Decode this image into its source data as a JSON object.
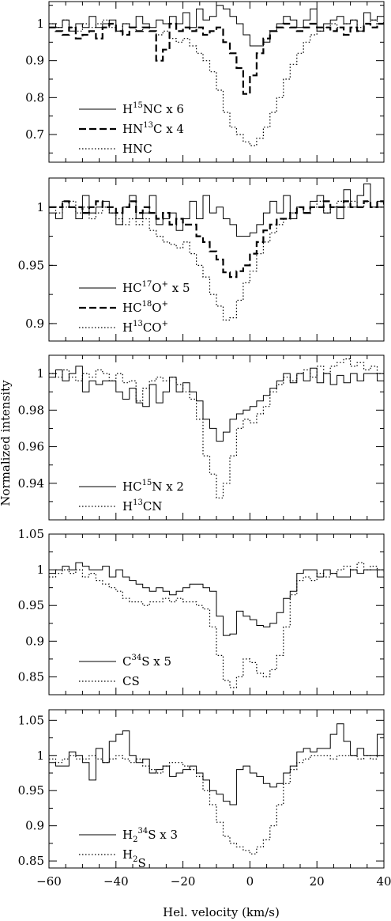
{
  "chart_data": [
    {
      "type": "line",
      "xlim": [
        -60,
        40
      ],
      "ylim": [
        0.625,
        1.06
      ],
      "yticks_labeled": [
        0.7,
        0.8,
        0.9,
        1
      ],
      "yticks_minor": [
        0.65,
        0.75,
        0.85,
        0.95,
        1.05
      ],
      "step": 2,
      "series": [
        {
          "name": "H15NC x 6",
          "label": {
            "base": "H",
            "sup1": "15",
            "mid": "NC x 6"
          },
          "style": "solid",
          "y": [
            1.0,
            0.99,
            1.01,
            0.98,
            1.0,
            0.99,
            1.02,
            0.99,
            1.0,
            1.01,
            0.98,
            1.0,
            0.99,
            1.02,
            1.0,
            0.99,
            1.01,
            1.0,
            1.02,
            1.0,
            1.03,
            0.99,
            1.04,
            1.01,
            1.02,
            1.05,
            1.04,
            1.02,
            1.0,
            0.97,
            0.94,
            0.94,
            0.95,
            0.98,
            1.0,
            1.02,
            1.01,
            0.99,
            1.01,
            1.04,
            0.98,
            1.0,
            1.01,
            1.02,
            1.0,
            1.01,
            0.98,
            1.03,
            1.01,
            1.02,
            1.04
          ]
        },
        {
          "name": "HN13C x 4",
          "label": {
            "base": "HN",
            "sup1": "13",
            "mid": "C x 4"
          },
          "style": "dashed",
          "y": [
            0.99,
            0.98,
            0.97,
            0.99,
            0.96,
            0.97,
            0.98,
            0.96,
            0.99,
            1.0,
            0.98,
            0.97,
            0.99,
            0.98,
            0.99,
            0.98,
            0.9,
            0.93,
            1.0,
            0.98,
            0.99,
            0.98,
            0.99,
            0.97,
            0.98,
            0.99,
            0.95,
            0.92,
            0.88,
            0.81,
            0.86,
            0.92,
            0.96,
            0.98,
            0.99,
            1.0,
            0.99,
            0.98,
            0.99,
            1.0,
            0.99,
            0.99,
            0.98,
            0.99,
            0.97,
            0.99,
            0.98,
            1.0,
            0.99,
            1.0,
            1.01
          ]
        },
        {
          "name": "HNC",
          "label": {
            "base": "HNC"
          },
          "style": "dotted",
          "y": [
            1.0,
            0.99,
            1.01,
            0.99,
            0.98,
            1.0,
            0.99,
            1.0,
            1.01,
            0.99,
            0.98,
            1.0,
            0.99,
            0.98,
            0.99,
            0.98,
            0.97,
            0.98,
            0.96,
            0.95,
            0.96,
            0.94,
            0.92,
            0.9,
            0.87,
            0.82,
            0.76,
            0.72,
            0.7,
            0.68,
            0.67,
            0.69,
            0.72,
            0.76,
            0.8,
            0.85,
            0.89,
            0.92,
            0.95,
            0.97,
            0.98,
            0.99,
            1.0,
            0.99,
            1.0,
            1.01,
            0.99,
            1.0,
            1.01,
            1.0,
            1.01
          ]
        }
      ]
    },
    {
      "type": "line",
      "xlim": [
        -60,
        40
      ],
      "ylim": [
        0.885,
        1.025
      ],
      "yticks_labeled": [
        0.9,
        0.95,
        1
      ],
      "yticks_minor": [
        0.9,
        0.925,
        0.95,
        0.975,
        1.0,
        1.025
      ],
      "step": 2,
      "series": [
        {
          "name": "HC17O+ x 5",
          "label": {
            "base": "HC",
            "sup1": "17",
            "mid": "O",
            "sup2": "+",
            "tail": " x 5"
          },
          "style": "solid",
          "y": [
            0.995,
            0.99,
            1.005,
            1.0,
            0.99,
            1.01,
            0.995,
            1.0,
            1.005,
            0.995,
            0.985,
            1.0,
            1.01,
            0.99,
            0.995,
            1.01,
            0.985,
            0.99,
            0.995,
            0.98,
            0.99,
            1.005,
            0.99,
            1.01,
            0.995,
            1.0,
            0.99,
            0.985,
            0.975,
            0.975,
            0.978,
            0.985,
            0.995,
            1.005,
            0.995,
            1.01,
            0.99,
            1.0,
            0.995,
            1.005,
            1.01,
            0.995,
            1.0,
            0.99,
            1.015,
            1.0,
            1.01,
            1.02,
            1.0,
            1.005,
            1.0
          ]
        },
        {
          "name": "HC18O+",
          "label": {
            "base": "HC",
            "sup1": "18",
            "mid": "O",
            "sup2": "+"
          },
          "style": "dashed",
          "y": [
            1.0,
            1.0,
            1.005,
            1.0,
            1.0,
            0.995,
            1.0,
            1.005,
            1.0,
            1.0,
            0.995,
            1.0,
            1.005,
            0.995,
            1.0,
            0.995,
            0.99,
            0.995,
            0.985,
            0.99,
            0.985,
            0.985,
            0.975,
            0.97,
            0.962,
            0.955,
            0.944,
            0.94,
            0.945,
            0.95,
            0.96,
            0.97,
            0.98,
            0.985,
            0.99,
            0.99,
            0.995,
            1.0,
            0.995,
            1.0,
            1.0,
            1.005,
            1.0,
            1.0,
            1.005,
            1.0,
            1.0,
            1.005,
            1.0,
            1.005,
            1.0
          ]
        },
        {
          "name": "H13CO+",
          "label": {
            "base": "H",
            "sup1": "13",
            "mid": "CO",
            "sup2": "+"
          },
          "style": "dotted",
          "y": [
            1.0,
            0.995,
            1.0,
            1.005,
            0.995,
            1.0,
            0.99,
            0.995,
            1.0,
            0.995,
            0.99,
            0.985,
            0.99,
            0.985,
            0.99,
            0.98,
            0.975,
            0.97,
            0.968,
            0.965,
            0.97,
            0.96,
            0.95,
            0.94,
            0.925,
            0.915,
            0.903,
            0.905,
            0.92,
            0.935,
            0.945,
            0.96,
            0.97,
            0.978,
            0.985,
            0.99,
            0.995,
            1.0,
            0.995,
            1.0,
            1.005,
            0.995,
            1.0,
            1.005,
            1.0,
            1.005,
            1.0,
            1.005,
            1.0,
            1.0,
            1.0
          ]
        }
      ]
    },
    {
      "type": "line",
      "xlim": [
        -60,
        40
      ],
      "ylim": [
        0.92,
        1.01
      ],
      "yticks_labeled": [
        0.94,
        0.96,
        0.98,
        1
      ],
      "yticks_minor": [
        0.93,
        0.95,
        0.97,
        0.99
      ],
      "step": 2,
      "series": [
        {
          "name": "HC15N x 2",
          "label": {
            "base": "HC",
            "sup1": "15",
            "mid": "N x 2"
          },
          "style": "solid",
          "y": [
            0.998,
            1.002,
            0.996,
            1.0,
            1.004,
            0.99,
            0.996,
            0.994,
            0.996,
            0.996,
            0.99,
            0.986,
            0.992,
            0.984,
            0.982,
            0.994,
            0.984,
            0.99,
            0.998,
            0.99,
            0.995,
            0.99,
            0.985,
            0.975,
            0.97,
            0.963,
            0.968,
            0.975,
            0.978,
            0.98,
            0.982,
            0.985,
            0.988,
            0.992,
            0.996,
            1.0,
            0.995,
            1.0,
            0.996,
            1.003,
            0.995,
            1.0,
            0.994,
            0.999,
            0.995,
            1.0,
            0.996,
            1.0,
            1.0,
            0.996,
            1.0
          ]
        },
        {
          "name": "H13CN",
          "label": {
            "base": "H",
            "sup1": "13",
            "mid": "CN"
          },
          "style": "dotted",
          "y": [
            1.0,
            0.998,
            1.002,
            0.998,
            0.996,
            1.0,
            0.998,
            1.002,
            1.0,
            0.996,
            1.0,
            0.995,
            0.996,
            0.985,
            0.992,
            0.996,
            0.998,
            0.996,
            0.998,
            0.994,
            0.99,
            0.986,
            0.975,
            0.955,
            0.945,
            0.932,
            0.94,
            0.955,
            0.97,
            0.975,
            0.973,
            0.978,
            0.982,
            0.99,
            0.994,
            0.998,
            0.996,
            1.0,
            1.002,
            0.998,
            1.004,
            1.0,
            1.004,
            1.006,
            1.008,
            1.004,
            1.006,
            1.002,
            1.004,
            1.0,
            1.002
          ]
        }
      ]
    },
    {
      "type": "line",
      "xlim": [
        -60,
        40
      ],
      "ylim": [
        0.825,
        1.05
      ],
      "yticks_labeled": [
        0.85,
        0.9,
        0.95,
        1,
        1.05
      ],
      "yticks_minor": [
        0.875,
        0.925,
        0.975,
        1.025
      ],
      "step": 2,
      "series": [
        {
          "name": "C34S x 5",
          "label": {
            "base": "C",
            "sup1": "34",
            "mid": "S x 5"
          },
          "style": "solid",
          "y": [
            0.995,
            1.0,
            1.005,
            1.0,
            1.01,
            1.005,
            1.0,
            1.0,
            1.005,
            0.99,
            1.0,
            0.99,
            0.985,
            0.98,
            0.975,
            0.97,
            0.975,
            0.97,
            0.965,
            0.97,
            0.975,
            0.98,
            0.98,
            0.975,
            0.97,
            0.935,
            0.908,
            0.91,
            0.942,
            0.935,
            0.93,
            0.922,
            0.92,
            0.925,
            0.94,
            0.96,
            0.97,
            0.995,
            1.0,
            1.0,
            0.99,
            1.0,
            0.995,
            0.99,
            0.99,
            1.0,
            0.995,
            1.0,
            1.0,
            0.99,
            0.995
          ]
        },
        {
          "name": "CS",
          "label": {
            "base": "CS"
          },
          "style": "dotted",
          "y": [
            0.99,
            0.995,
            1.0,
            0.995,
            1.0,
            0.99,
            0.995,
            0.985,
            0.98,
            0.975,
            0.97,
            0.96,
            0.955,
            0.955,
            0.95,
            0.955,
            0.955,
            0.96,
            0.955,
            0.96,
            0.955,
            0.955,
            0.95,
            0.945,
            0.92,
            0.88,
            0.845,
            0.835,
            0.85,
            0.875,
            0.87,
            0.855,
            0.85,
            0.86,
            0.88,
            0.92,
            0.965,
            0.985,
            0.99,
            0.985,
            0.995,
            0.99,
            0.995,
            1.0,
            1.005,
            1.0,
            1.01,
            1.0,
            1.005,
            1.0,
            0.995
          ]
        }
      ]
    },
    {
      "type": "line",
      "xlim": [
        -60,
        40
      ],
      "ylim": [
        0.84,
        1.065
      ],
      "yticks_labeled": [
        0.85,
        0.9,
        0.95,
        1,
        1.05
      ],
      "yticks_minor": [
        0.875,
        0.925,
        0.975,
        1.025
      ],
      "step": 2,
      "series": [
        {
          "name": "H234S x 3",
          "label": {
            "base": "H",
            "sub1": "2",
            "sup1": "34",
            "mid": "S x 3"
          },
          "style": "solid",
          "y": [
            0.99,
            0.985,
            0.985,
            1.005,
            1.0,
            0.99,
            0.965,
            1.01,
            0.99,
            1.02,
            1.03,
            1.035,
            1.0,
            0.99,
            0.995,
            0.975,
            0.98,
            0.985,
            0.97,
            0.975,
            0.98,
            0.985,
            0.975,
            0.965,
            0.95,
            0.945,
            0.935,
            0.93,
            0.98,
            0.985,
            0.975,
            0.97,
            0.96,
            0.955,
            0.96,
            0.975,
            0.985,
            1.005,
            1.01,
            1.005,
            1.01,
            1.01,
            1.03,
            1.045,
            1.02,
            1.0,
            1.01,
            1.0,
            1.0,
            1.03,
            0.995
          ]
        },
        {
          "name": "H2S",
          "label": {
            "base": "H",
            "sub1": "2",
            "mid": "S"
          },
          "style": "dotted",
          "y": [
            0.995,
            0.99,
            0.995,
            1.0,
            0.995,
            0.995,
            1.0,
            0.995,
            0.99,
            0.995,
            1.0,
            0.995,
            0.99,
            0.995,
            0.985,
            0.98,
            0.975,
            0.985,
            0.99,
            0.99,
            0.985,
            0.98,
            0.97,
            0.95,
            0.93,
            0.905,
            0.885,
            0.875,
            0.87,
            0.865,
            0.86,
            0.87,
            0.88,
            0.9,
            0.93,
            0.96,
            0.98,
            0.99,
            0.995,
            1.0,
            1.0,
            1.0,
            0.995,
            1.0,
            1.0,
            1.0,
            0.995,
            1.0,
            0.995,
            1.0,
            1.0
          ]
        }
      ]
    }
  ],
  "axes": {
    "xticks": [
      -60,
      -40,
      -20,
      0,
      20,
      40
    ],
    "xtick_labels": [
      "−60",
      "−40",
      "−20",
      "0",
      "20",
      "40"
    ],
    "xlabel": "Hel. velocity (km/s)",
    "ylabel": "Normalized intensity"
  }
}
